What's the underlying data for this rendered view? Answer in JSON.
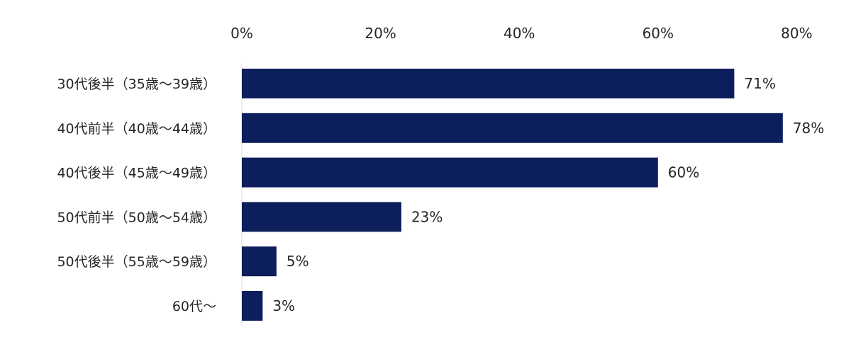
{
  "chart_data": {
    "type": "bar",
    "orientation": "horizontal",
    "categories": [
      "30代後半（35歳～39歳）",
      "40代前半（40歳～44歳）",
      "40代後半（45歳～49歳）",
      "50代前半（50歳～54歳）",
      "50代後半（55歳～59歳）",
      "60代～"
    ],
    "values": [
      71,
      78,
      60,
      23,
      5,
      3
    ],
    "data_labels": [
      "71%",
      "78%",
      "60%",
      "23%",
      "5%",
      "3%"
    ],
    "x_ticks": [
      "0%",
      "20%",
      "40%",
      "60%",
      "80%"
    ],
    "x_tick_values": [
      0,
      20,
      40,
      60,
      80
    ],
    "xlim": [
      0,
      83
    ],
    "axis_position": "top",
    "grid": false,
    "legend": "none",
    "bar_color": "#0c1e5b",
    "axis_line_color": "#d9d9d9"
  }
}
